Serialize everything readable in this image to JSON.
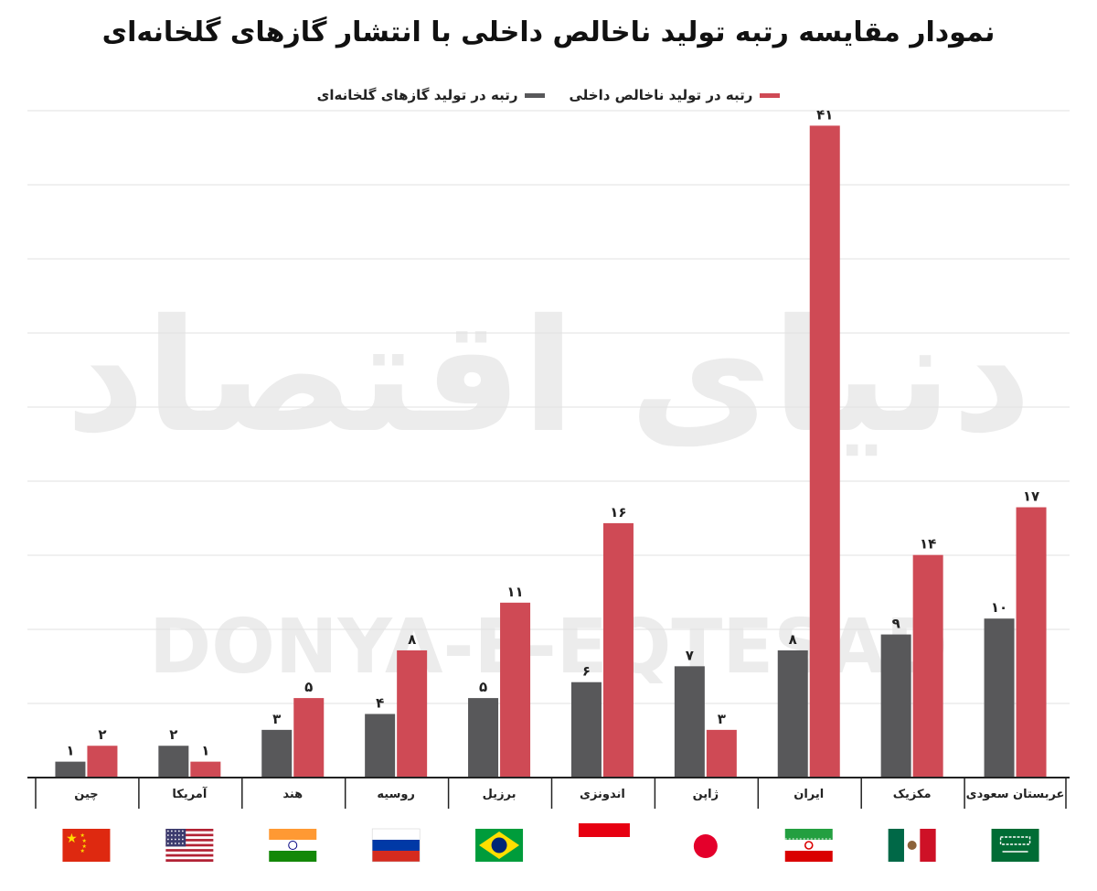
{
  "title": "نمودار مقایسه رتبه تولید ناخالص داخلی با انتشار گازهای گلخانه‌ای",
  "watermark": {
    "latin": "DONYA-E-EQTESAD",
    "persian": "دنیای اقتصاد"
  },
  "colors": {
    "emissions": "#58585a",
    "gdp": "#cf4a55",
    "grid": "#e2e2e2"
  },
  "chart_data": {
    "type": "bar",
    "title": "نمودار مقایسه رتبه تولید ناخالص داخلی با انتشار گازهای گلخانه‌ای",
    "categories": [
      "چین",
      "آمریکا",
      "هند",
      "روسیه",
      "برزیل",
      "اندونزی",
      "ژاپن",
      "ایران",
      "مکزیک",
      "عربستان سعودی"
    ],
    "series": [
      {
        "name": "رتبه در تولید گازهای گلخانه‌ای",
        "color": "#58585a",
        "values": [
          1,
          2,
          3,
          4,
          5,
          6,
          7,
          8,
          9,
          10
        ],
        "labels": [
          "۱",
          "۲",
          "۳",
          "۴",
          "۵",
          "۶",
          "۷",
          "۸",
          "۹",
          "۱۰"
        ]
      },
      {
        "name": "رتبه در تولید ناخالص داخلی",
        "color": "#cf4a55",
        "values": [
          2,
          1,
          5,
          8,
          11,
          16,
          3,
          41,
          14,
          17
        ],
        "labels": [
          "۲",
          "۱",
          "۵",
          "۸",
          "۱۱",
          "۱۶",
          "۳",
          "۴۱",
          "۱۴",
          "۱۷"
        ]
      }
    ],
    "ylim": [
      0,
      42
    ],
    "grid": true,
    "legend_position": "top-center",
    "flags": [
      "china-flag",
      "usa-flag",
      "india-flag",
      "russia-flag",
      "brazil-flag",
      "indonesia-flag",
      "japan-flag",
      "iran-flag",
      "mexico-flag",
      "saudi-arabia-flag"
    ]
  }
}
